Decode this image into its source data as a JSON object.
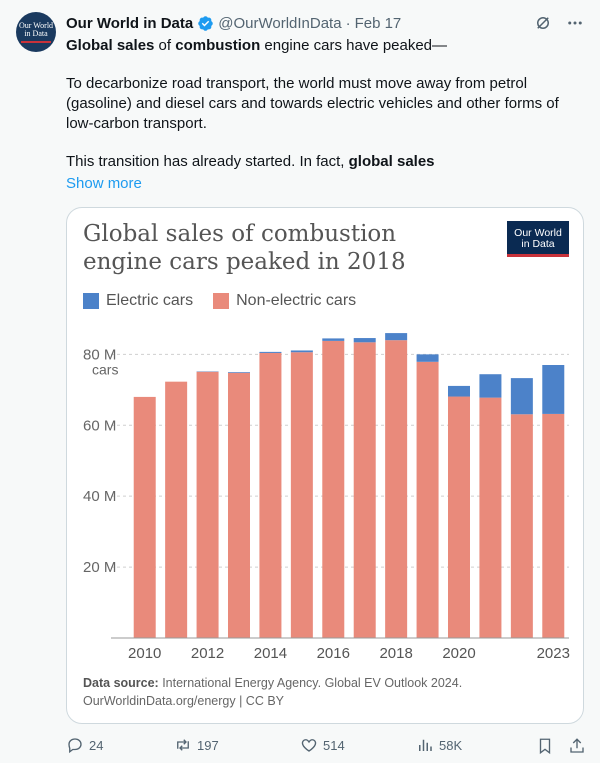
{
  "tweet": {
    "author_name": "Our World in Data",
    "handle": "@OurWorldInData",
    "dot": "·",
    "date": "Feb 17",
    "avatar_text_1": "Our World",
    "avatar_text_2": "in Data",
    "para1_b1": "Global sales",
    "para1_t1": " of ",
    "para1_b2": "combustion",
    "para1_t2": " engine cars have peaked—",
    "para2": "To decarbonize road transport, the world must move away from petrol (gasoline) and diesel cars and towards electric vehicles and other forms of low-carbon transport.",
    "para3_t": "This transition has already started. In fact, ",
    "para3_b": "global sales",
    "show_more": "Show more"
  },
  "card": {
    "title": "Global sales of combustion engine cars peaked in 2018",
    "logo_1": "Our World",
    "logo_2": "in Data",
    "legend_electric": "Electric cars",
    "legend_nonelectric": "Non-electric cars",
    "source_label": "Data source:",
    "source_text": " International Energy Agency. Global EV Outlook 2024.",
    "source_line2": "OurWorldinData.org/energy | CC BY"
  },
  "actions": {
    "replies": "24",
    "reposts": "197",
    "likes": "514",
    "views": "58K"
  },
  "colors": {
    "electric": "#4c82c9",
    "nonelectric": "#e98a7b",
    "link": "#1d9bf0"
  },
  "chart_data": {
    "type": "bar",
    "stacked": true,
    "title": "Global sales of combustion engine cars peaked in 2018",
    "categories": [
      "2010",
      "2011",
      "2012",
      "2013",
      "2014",
      "2015",
      "2016",
      "2017",
      "2018",
      "2019",
      "2020",
      "2021",
      "2022",
      "2023"
    ],
    "x_tick_labels": [
      "2010",
      "",
      "2012",
      "",
      "2014",
      "",
      "2016",
      "",
      "2018",
      "",
      "2020",
      "",
      "",
      "2023"
    ],
    "series": [
      {
        "name": "Non-electric cars",
        "values": [
          68.0,
          72.3,
          75.1,
          74.8,
          80.4,
          80.6,
          83.8,
          83.4,
          84.0,
          77.9,
          68.1,
          67.8,
          63.1,
          63.2
        ]
      },
      {
        "name": "Electric cars",
        "values": [
          0.0,
          0.0,
          0.1,
          0.2,
          0.3,
          0.5,
          0.7,
          1.2,
          2.0,
          2.1,
          3.0,
          6.6,
          10.2,
          13.8
        ]
      }
    ],
    "yticks": [
      "20 M",
      "40 M",
      "60 M",
      "80 M"
    ],
    "ylabel_unit": "cars",
    "ylim": [
      0,
      88
    ],
    "grid": "horizontal dashed",
    "legend": "top-left"
  }
}
